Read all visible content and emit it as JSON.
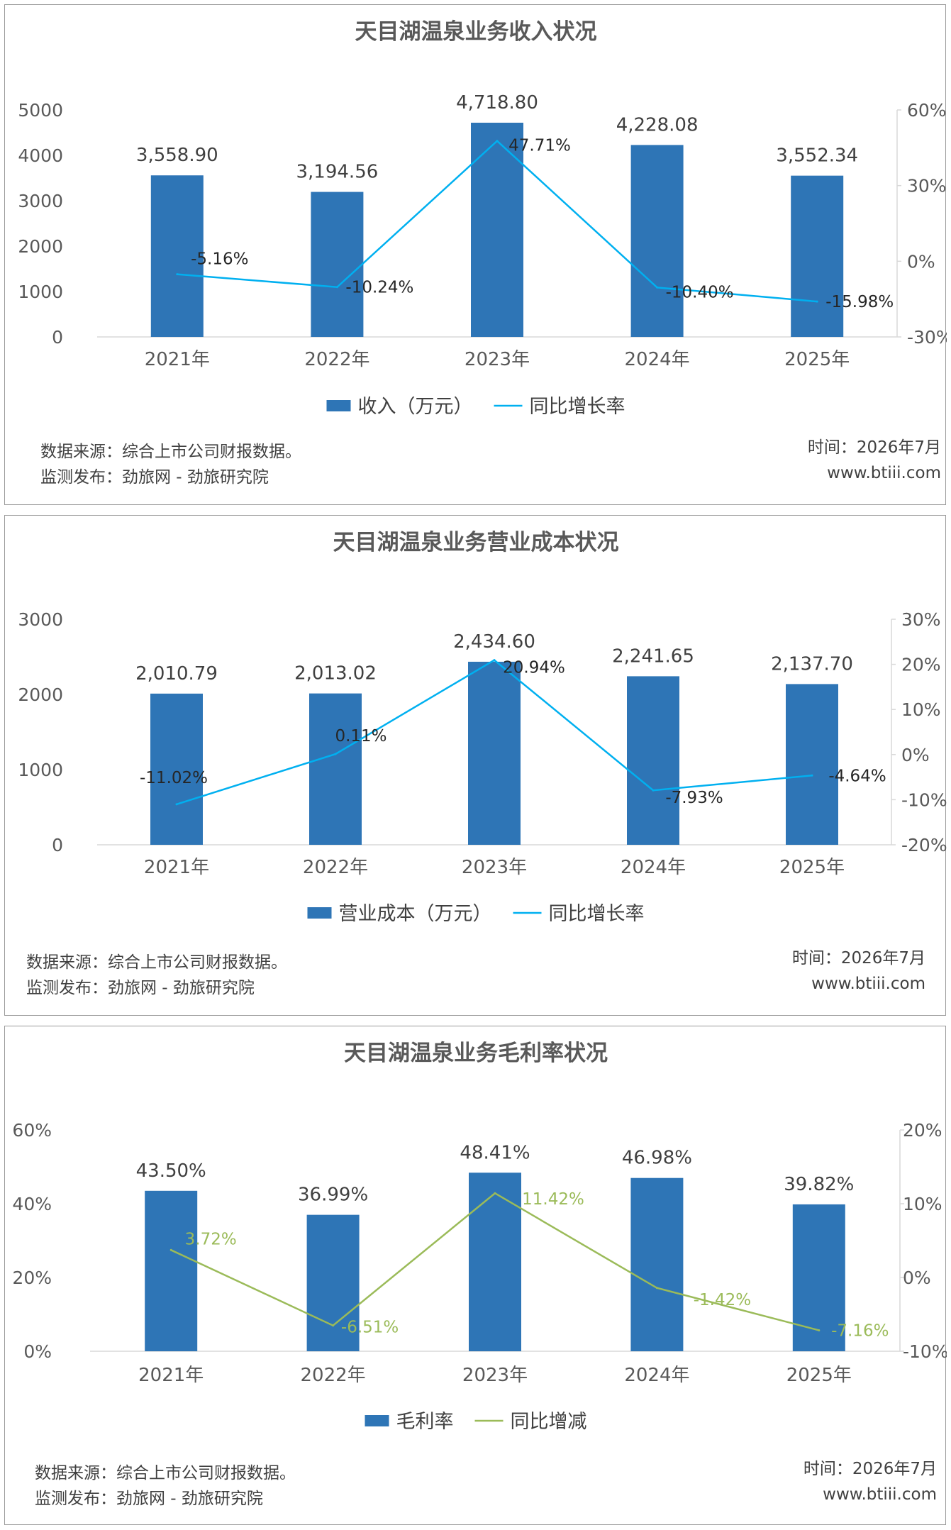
{
  "chart_data": [
    {
      "type": "bar",
      "title": "天目湖温泉业务收入状况",
      "categories": [
        "2021年",
        "2022年",
        "2023年",
        "2024年",
        "2025年"
      ],
      "series": [
        {
          "name": "收入（万元）",
          "type": "bar",
          "axis": "left",
          "values": [
            3558.9,
            3194.56,
            4718.8,
            4228.08,
            3552.34
          ],
          "labels": [
            "3,558.90",
            "3,194.56",
            "4,718.80",
            "4,228.08",
            "3,552.34"
          ]
        },
        {
          "name": "同比增长率",
          "type": "line",
          "axis": "right",
          "values": [
            -5.16,
            -10.24,
            47.71,
            -10.4,
            -15.98
          ],
          "labels": [
            "-5.16%",
            "-10.24%",
            "47.71%",
            "-10.40%",
            "-15.98%"
          ]
        }
      ],
      "left_ticks": [
        "5000",
        "4000",
        "3000",
        "2000",
        "1000",
        "0"
      ],
      "left_range": [
        0,
        5000
      ],
      "right_ticks": [
        "60%",
        "30%",
        "0%",
        "-30%"
      ],
      "right_range": [
        -30,
        60
      ],
      "bar_color": "#2e75b6",
      "line_color": "#00b0f0",
      "line_label_color": "#262626",
      "legend_position": "bottom",
      "footer": {
        "source": "数据来源：综合上市公司财报数据。",
        "publisher": "监测发布：劲旅网 - 劲旅研究院",
        "time": "时间：2026年7月",
        "site": "www.btiii.com"
      }
    },
    {
      "type": "bar",
      "title": "天目湖温泉业务营业成本状况",
      "categories": [
        "2021年",
        "2022年",
        "2023年",
        "2024年",
        "2025年"
      ],
      "series": [
        {
          "name": "营业成本（万元）",
          "type": "bar",
          "axis": "left",
          "values": [
            2010.79,
            2013.02,
            2434.6,
            2241.65,
            2137.7
          ],
          "labels": [
            "2,010.79",
            "2,013.02",
            "2,434.60",
            "2,241.65",
            "2,137.70"
          ]
        },
        {
          "name": "同比增长率",
          "type": "line",
          "axis": "right",
          "values": [
            -11.02,
            0.11,
            20.94,
            -7.93,
            -4.64
          ],
          "labels": [
            "-11.02%",
            "0.11%",
            "20.94%",
            "-7.93%",
            "-4.64%"
          ]
        }
      ],
      "left_ticks": [
        "3000",
        "2000",
        "1000",
        "0"
      ],
      "left_range": [
        0,
        3000
      ],
      "right_ticks": [
        "30%",
        "20%",
        "10%",
        "0%",
        "-10%",
        "-20%"
      ],
      "right_range": [
        -20,
        30
      ],
      "bar_color": "#2e75b6",
      "line_color": "#00b0f0",
      "line_label_color": "#262626",
      "legend_position": "bottom",
      "footer": {
        "source": "数据来源：综合上市公司财报数据。",
        "publisher": "监测发布：劲旅网 - 劲旅研究院",
        "time": "时间：2026年7月",
        "site": "www.btiii.com"
      }
    },
    {
      "type": "bar",
      "title": "天目湖温泉业务毛利率状况",
      "categories": [
        "2021年",
        "2022年",
        "2023年",
        "2024年",
        "2025年"
      ],
      "series": [
        {
          "name": "毛利率",
          "type": "bar",
          "axis": "left",
          "values": [
            43.5,
            36.99,
            48.41,
            46.98,
            39.82
          ],
          "labels": [
            "43.50%",
            "36.99%",
            "48.41%",
            "46.98%",
            "39.82%"
          ]
        },
        {
          "name": "同比增减",
          "type": "line",
          "axis": "right",
          "values": [
            3.72,
            -6.51,
            11.42,
            -1.42,
            -7.16
          ],
          "labels": [
            "3.72%",
            "-6.51%",
            "11.42%",
            "-1.42%",
            "-7.16%"
          ]
        }
      ],
      "left_ticks": [
        "60%",
        "40%",
        "20%",
        "0%"
      ],
      "left_range": [
        0,
        60
      ],
      "right_ticks": [
        "20%",
        "10%",
        "0%",
        "-10%"
      ],
      "right_range": [
        -10,
        20
      ],
      "bar_color": "#2e75b6",
      "line_color": "#9bbb59",
      "line_label_color": "#9bbb59",
      "legend_position": "bottom",
      "footer": {
        "source": "数据来源：综合上市公司财报数据。",
        "publisher": "监测发布：劲旅网 - 劲旅研究院",
        "time": "时间：2026年7月",
        "site": "www.btiii.com"
      }
    }
  ]
}
